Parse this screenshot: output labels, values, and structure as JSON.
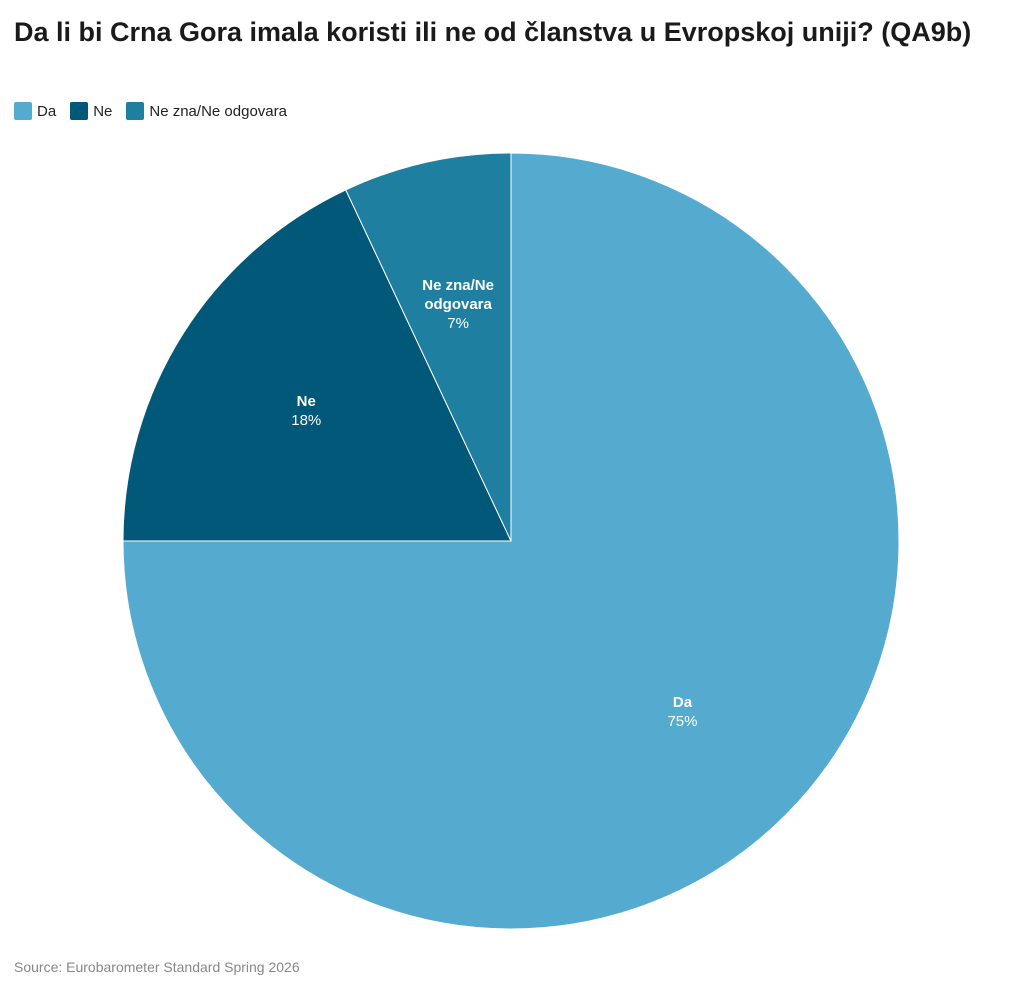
{
  "chart_data": {
    "type": "pie",
    "title": "Da li bi Crna Gora imala koristi ili ne od članstva u Evropskoj uniji? (QA9b)",
    "categories": [
      "Da",
      "Ne",
      "Ne zna/Ne odgovara"
    ],
    "values": [
      75,
      18,
      7
    ],
    "value_labels": [
      "75%",
      "18%",
      "7%"
    ],
    "colors": [
      "#54abcf",
      "#015878",
      "#1f7fa0"
    ],
    "source": "Source: Eurobarometer Standard Spring 2026"
  }
}
